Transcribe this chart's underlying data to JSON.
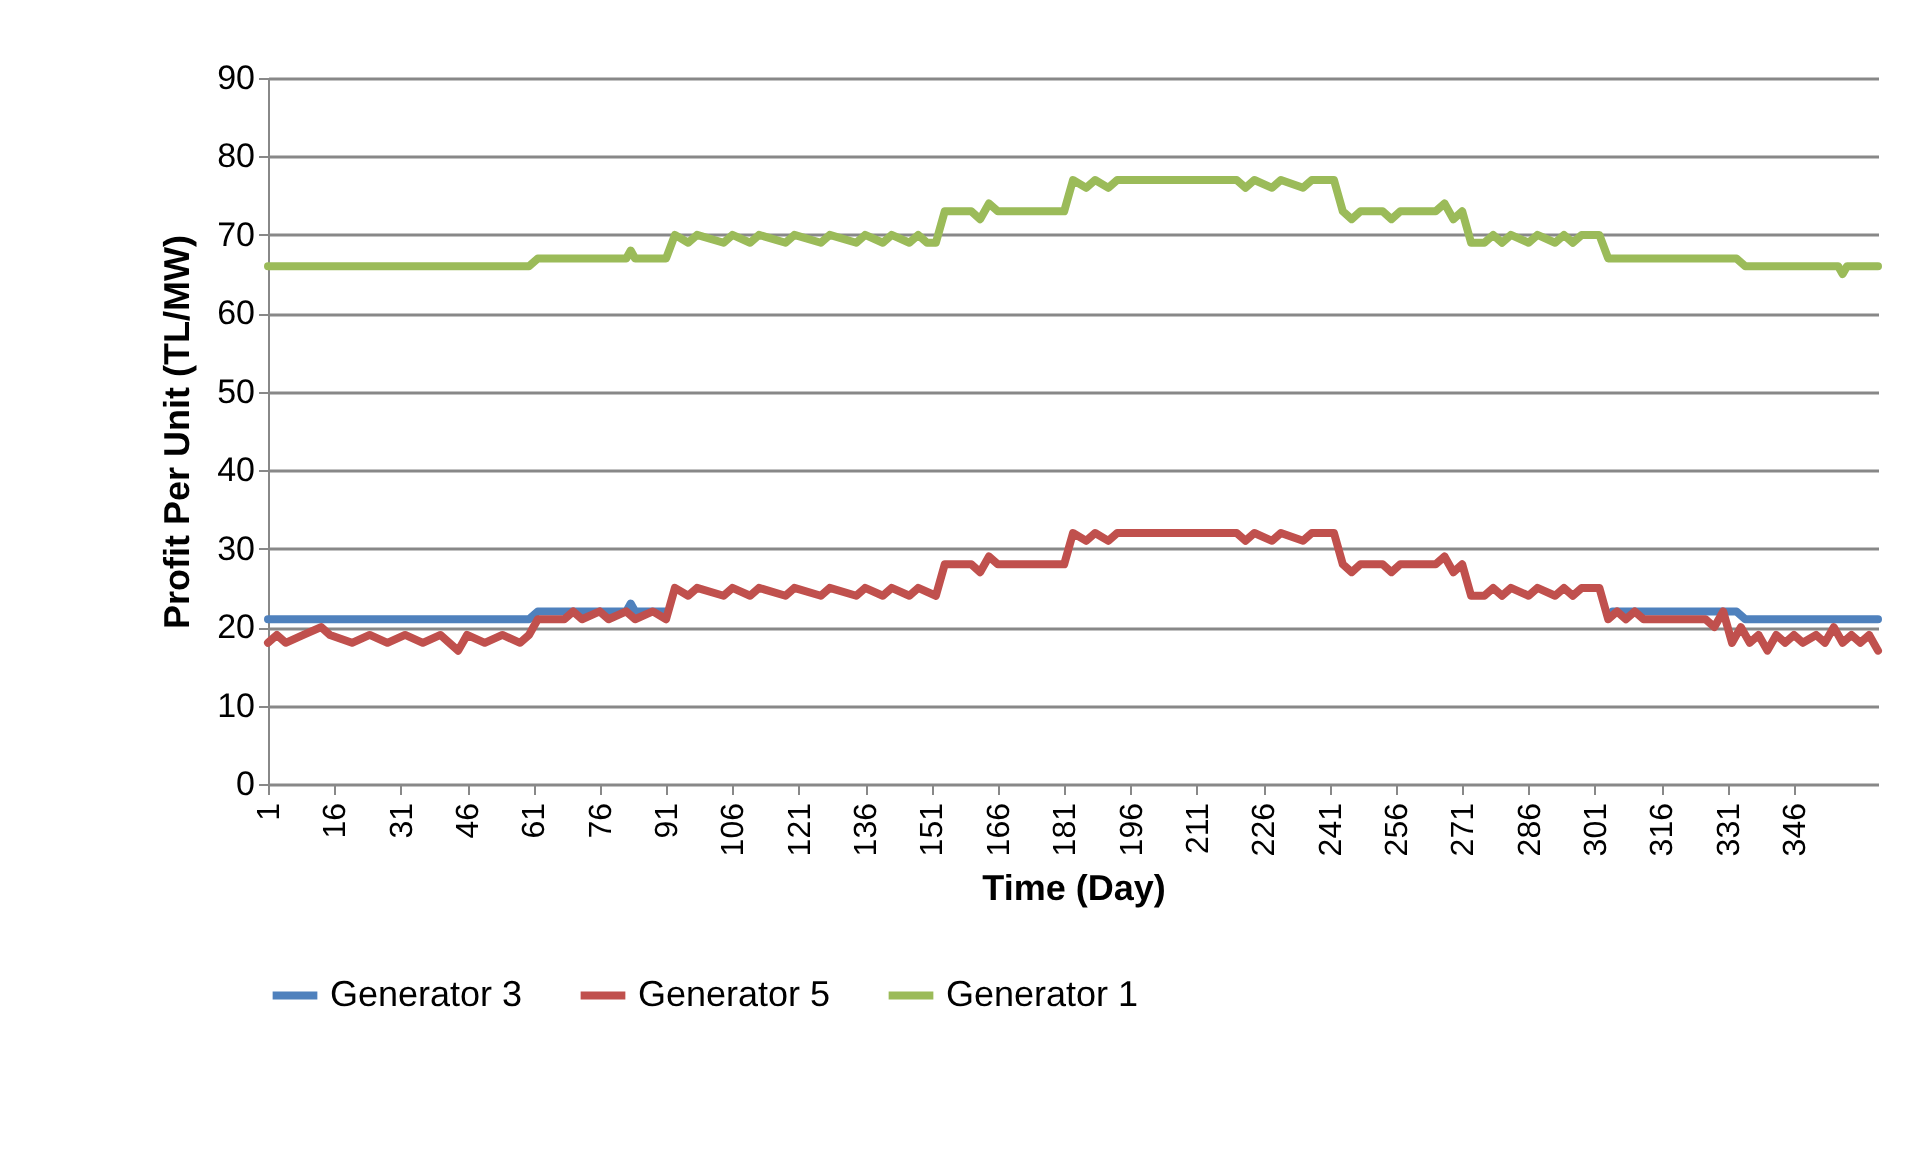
{
  "chart_data": {
    "type": "line",
    "xlabel": "Time (Day)",
    "ylabel": "Profit Per Unit (TL/MW)",
    "xlim": [
      1,
      365
    ],
    "xticks": [
      1,
      16,
      31,
      46,
      61,
      76,
      91,
      106,
      121,
      136,
      151,
      166,
      181,
      196,
      211,
      226,
      241,
      256,
      271,
      286,
      301,
      316,
      331,
      346
    ],
    "ylim": [
      0,
      90
    ],
    "yticks": [
      0,
      10,
      20,
      30,
      40,
      50,
      60,
      70,
      80,
      90
    ],
    "grid": "y",
    "legend": "bottom",
    "series": [
      {
        "name": "Generator 3",
        "color": "#4f81bd",
        "x": [
          1,
          60,
          62,
          82,
          83,
          84,
          91,
          93,
          303,
          305,
          333,
          335,
          365
        ],
        "values": [
          21,
          21,
          22,
          22,
          23,
          22,
          22,
          null,
          null,
          22,
          22,
          21,
          21
        ]
      },
      {
        "name": "Generator 5",
        "color": "#c0504d",
        "x": [
          1,
          3,
          5,
          9,
          13,
          15,
          20,
          24,
          28,
          32,
          36,
          40,
          44,
          46,
          50,
          54,
          58,
          60,
          62,
          68,
          70,
          72,
          76,
          78,
          82,
          84,
          88,
          91,
          93,
          96,
          98,
          104,
          106,
          110,
          112,
          118,
          120,
          126,
          128,
          134,
          136,
          140,
          142,
          146,
          148,
          152,
          154,
          160,
          162,
          164,
          166,
          181,
          183,
          186,
          188,
          191,
          193,
          220,
          222,
          224,
          228,
          230,
          235,
          237,
          242,
          244,
          246,
          248,
          253,
          255,
          257,
          265,
          267,
          269,
          271,
          273,
          276,
          278,
          280,
          282,
          286,
          288,
          292,
          294,
          296,
          298,
          302,
          304,
          306,
          308,
          310,
          312,
          318,
          322,
          326,
          328,
          330,
          332,
          334,
          336,
          338,
          340,
          342,
          344,
          346,
          348,
          351,
          353,
          355,
          357,
          359,
          361,
          363,
          365
        ],
        "values": [
          18,
          19,
          18,
          19,
          20,
          19,
          18,
          19,
          18,
          19,
          18,
          19,
          17,
          19,
          18,
          19,
          18,
          19,
          21,
          21,
          22,
          21,
          22,
          21,
          22,
          21,
          22,
          21,
          25,
          24,
          25,
          24,
          25,
          24,
          25,
          24,
          25,
          24,
          25,
          24,
          25,
          24,
          25,
          24,
          25,
          24,
          28,
          28,
          27,
          29,
          28,
          28,
          32,
          31,
          32,
          31,
          32,
          32,
          31,
          32,
          31,
          32,
          31,
          32,
          32,
          28,
          27,
          28,
          28,
          27,
          28,
          28,
          29,
          27,
          28,
          24,
          24,
          25,
          24,
          25,
          24,
          25,
          24,
          25,
          24,
          25,
          25,
          21,
          22,
          21,
          22,
          21,
          21,
          21,
          21,
          20,
          22,
          18,
          20,
          18,
          19,
          17,
          19,
          18,
          19,
          18,
          19,
          18,
          20,
          18,
          19,
          18,
          19,
          17
        ]
      },
      {
        "name": "Generator 1",
        "color": "#9bbb59",
        "x": [
          1,
          60,
          62,
          82,
          83,
          84,
          91,
          93,
          96,
          98,
          104,
          106,
          110,
          112,
          118,
          120,
          126,
          128,
          134,
          136,
          140,
          142,
          146,
          148,
          150,
          152,
          154,
          160,
          162,
          164,
          166,
          181,
          183,
          186,
          188,
          191,
          193,
          220,
          222,
          224,
          228,
          230,
          235,
          237,
          242,
          244,
          246,
          248,
          253,
          255,
          257,
          265,
          267,
          269,
          271,
          273,
          276,
          278,
          280,
          282,
          286,
          288,
          292,
          294,
          296,
          298,
          302,
          304,
          333,
          335,
          356,
          357,
          358,
          365
        ],
        "values": [
          66,
          66,
          67,
          67,
          68,
          67,
          67,
          70,
          69,
          70,
          69,
          70,
          69,
          70,
          69,
          70,
          69,
          70,
          69,
          70,
          69,
          70,
          69,
          70,
          69,
          69,
          73,
          73,
          72,
          74,
          73,
          73,
          77,
          76,
          77,
          76,
          77,
          77,
          76,
          77,
          76,
          77,
          76,
          77,
          77,
          73,
          72,
          73,
          73,
          72,
          73,
          73,
          74,
          72,
          73,
          69,
          69,
          70,
          69,
          70,
          69,
          70,
          69,
          70,
          69,
          70,
          70,
          67,
          67,
          66,
          66,
          65,
          66,
          66
        ]
      }
    ]
  }
}
